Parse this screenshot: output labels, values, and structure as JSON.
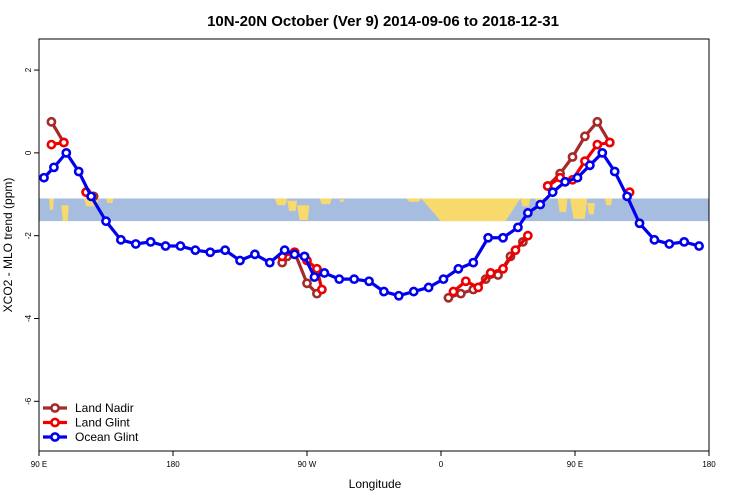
{
  "chart_data": {
    "type": "line",
    "title": "10N-20N October (Ver 9)   2014-09-06 to 2018-12-31",
    "xlabel": "Longitude",
    "ylabel": "XCO2 - MLO trend (ppm)",
    "xlim": [
      -90,
      180
    ],
    "ylim": [
      -7.2,
      2.75
    ],
    "x_ticks": [
      {
        "value": -90,
        "label": "90 E"
      },
      {
        "value": -36,
        "label": "180"
      },
      {
        "value": 18,
        "label": "90 W"
      },
      {
        "value": 72,
        "label": "0"
      },
      {
        "value": 126,
        "label": "90 E"
      },
      {
        "value": 180,
        "label": "180"
      }
    ],
    "y_ticks": [
      {
        "value": 2,
        "label": "2"
      },
      {
        "value": 0,
        "label": "0"
      },
      {
        "value": -2,
        "label": "-2"
      },
      {
        "value": -4,
        "label": "-4"
      },
      {
        "value": -6,
        "label": "-6"
      }
    ],
    "legend_position": "bottom-left",
    "map_band": {
      "y_from": -1.65,
      "y_to": -1.1,
      "ocean_color": "#a7bde0",
      "land_color": "#f8d96c"
    },
    "series": [
      {
        "name": "Land Nadir",
        "color": "#a52a2a",
        "segments": [
          {
            "x": [
              -85,
              -80
            ],
            "y": [
              0.75,
              0.25
            ]
          },
          {
            "x": [
              -71,
              -68
            ],
            "y": [
              -0.95,
              -1.05
            ]
          },
          {
            "x": [
              8,
              10,
              13,
              18,
              22
            ],
            "y": [
              -2.65,
              -2.5,
              -2.4,
              -3.15,
              -3.4
            ]
          },
          {
            "x": [
              75,
              80,
              85,
              90,
              95,
              100,
              105
            ],
            "y": [
              -3.5,
              -3.4,
              -3.3,
              -3.05,
              -2.95,
              -2.5,
              -2.15
            ]
          },
          {
            "x": [
              115,
              120,
              125,
              130,
              135,
              140
            ],
            "y": [
              -0.8,
              -0.5,
              -0.1,
              0.4,
              0.75,
              0.25
            ]
          }
        ]
      },
      {
        "name": "Land Glint",
        "color": "#ee0000",
        "segments": [
          {
            "x": [
              -85,
              -80
            ],
            "y": [
              0.2,
              0.25
            ]
          },
          {
            "x": [
              -71
            ],
            "y": [
              -0.95
            ]
          },
          {
            "x": [
              8,
              13,
              18,
              22,
              24
            ],
            "y": [
              -2.5,
              -2.4,
              -2.6,
              -2.8,
              -3.3
            ]
          },
          {
            "x": [
              77,
              82,
              87,
              92,
              97,
              102,
              107
            ],
            "y": [
              -3.35,
              -3.1,
              -3.25,
              -2.9,
              -2.8,
              -2.35,
              -2.0
            ]
          },
          {
            "x": [
              115,
              120,
              125,
              130,
              135,
              140
            ],
            "y": [
              -0.8,
              -0.6,
              -0.65,
              -0.2,
              0.2,
              0.25
            ]
          },
          {
            "x": [
              148
            ],
            "y": [
              -0.95
            ]
          }
        ]
      },
      {
        "name": "Ocean Glint",
        "color": "#0000ee",
        "segments": [
          {
            "x": [
              -88,
              -84,
              -79,
              -74,
              -69,
              -63,
              -57,
              -51,
              -45,
              -39,
              -33,
              -27,
              -21,
              -15,
              -9,
              -3,
              3,
              9,
              13,
              17,
              21,
              25,
              31,
              37,
              43,
              49,
              55,
              61,
              67,
              73,
              79,
              85,
              91,
              97,
              103,
              107,
              112,
              117,
              122,
              127,
              132,
              137,
              142,
              147,
              152,
              158,
              164,
              170,
              176
            ],
            "y": [
              -0.6,
              -0.35,
              0.0,
              -0.45,
              -1.05,
              -1.65,
              -2.1,
              -2.2,
              -2.15,
              -2.25,
              -2.25,
              -2.35,
              -2.4,
              -2.35,
              -2.6,
              -2.45,
              -2.65,
              -2.35,
              -2.45,
              -2.5,
              -3.0,
              -2.9,
              -3.05,
              -3.05,
              -3.1,
              -3.35,
              -3.45,
              -3.35,
              -3.25,
              -3.05,
              -2.8,
              -2.65,
              -2.05,
              -2.05,
              -1.8,
              -1.45,
              -1.25,
              -0.95,
              -0.7,
              -0.6,
              -0.3,
              0.0,
              -0.45,
              -1.05,
              -1.7,
              -2.1,
              -2.2,
              -2.15,
              -2.25
            ]
          }
        ]
      }
    ]
  }
}
